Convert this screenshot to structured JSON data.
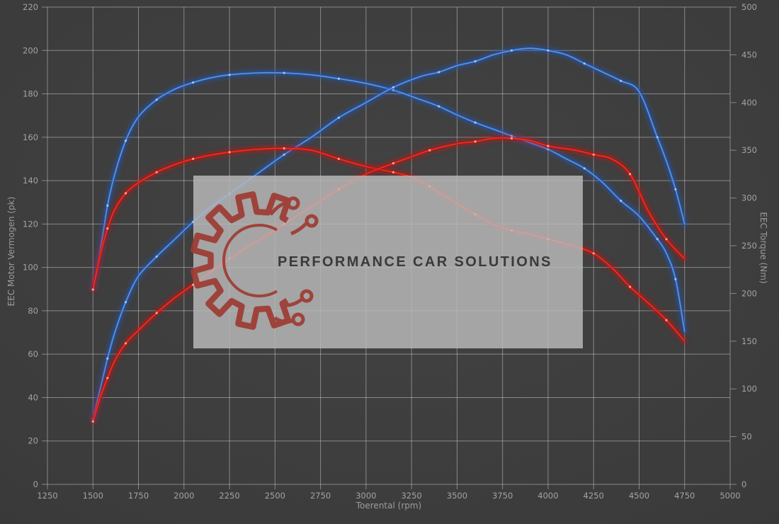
{
  "colors": {
    "background_center": "#434343",
    "background_edge": "#2a2a2a",
    "gridline": "rgba(210,210,210,0.50)",
    "tick_label": "#a3a3a3",
    "axis_title": "#9c9c9c"
  },
  "chart_data": {
    "type": "line",
    "title": "",
    "xlabel": "Toerental (rpm)",
    "ylabel_left": "EEC Motor Vermogen (pk)",
    "ylabel_right": "EEC Torque (Nm)",
    "x_range": [
      1250,
      5000
    ],
    "x_tick_step": 250,
    "x_tick_labels": [
      "1250",
      "1500",
      "1750",
      "2000",
      "2250",
      "2500",
      "2750",
      "3000",
      "3250",
      "3500",
      "3750",
      "4000",
      "4250",
      "4500",
      "4750",
      "5000"
    ],
    "y_left_range": [
      0,
      220
    ],
    "y_left_tick_step": 20,
    "y_left_tick_labels": [
      "0",
      "20",
      "40",
      "60",
      "80",
      "100",
      "120",
      "140",
      "160",
      "180",
      "200",
      "220"
    ],
    "y_right_range": [
      0,
      500
    ],
    "y_right_tick_step": 50,
    "y_right_tick_labels": [
      "0",
      "50",
      "100",
      "150",
      "200",
      "250",
      "300",
      "350",
      "400",
      "450",
      "500"
    ],
    "grid": "on (follows left-axis ticks and x ticks)",
    "legend": "none",
    "series": [
      {
        "id": "torque-tuned-blue",
        "axis": "right",
        "unit": "Nm",
        "glow": "#2257b8",
        "core": "#5causes",
        "comment_core_fix": "see core key below",
        "core_color": "#5b96dd",
        "dot_color": "#aacef2",
        "peak": {
          "rpm": 2500,
          "value": 431
        },
        "data": [
          [
            1500,
            205
          ],
          [
            1540,
            245
          ],
          [
            1580,
            292
          ],
          [
            1620,
            325
          ],
          [
            1680,
            360
          ],
          [
            1750,
            385
          ],
          [
            1850,
            403
          ],
          [
            1950,
            414
          ],
          [
            2050,
            421
          ],
          [
            2150,
            426
          ],
          [
            2250,
            429
          ],
          [
            2400,
            431
          ],
          [
            2550,
            431
          ],
          [
            2700,
            429
          ],
          [
            2850,
            425
          ],
          [
            3000,
            420
          ],
          [
            3150,
            413
          ],
          [
            3300,
            403
          ],
          [
            3400,
            396
          ],
          [
            3500,
            387
          ],
          [
            3600,
            379
          ],
          [
            3700,
            372
          ],
          [
            3800,
            365
          ],
          [
            3900,
            358
          ],
          [
            4000,
            351
          ],
          [
            4100,
            341
          ],
          [
            4200,
            331
          ],
          [
            4300,
            316
          ],
          [
            4400,
            297
          ],
          [
            4500,
            281
          ],
          [
            4600,
            257
          ],
          [
            4650,
            242
          ],
          [
            4700,
            215
          ],
          [
            4750,
            160
          ]
        ]
      },
      {
        "id": "power-tuned-blue",
        "axis": "left",
        "unit": "pk",
        "glow": "#2257b8",
        "core_color": "#5b96dd",
        "dot_color": "#aacef2",
        "peak": {
          "rpm": 3900,
          "value": 201
        },
        "data": [
          [
            1500,
            30
          ],
          [
            1540,
            44
          ],
          [
            1580,
            58
          ],
          [
            1620,
            70
          ],
          [
            1680,
            84
          ],
          [
            1750,
            96
          ],
          [
            1850,
            105
          ],
          [
            1950,
            113
          ],
          [
            2050,
            121
          ],
          [
            2150,
            128
          ],
          [
            2250,
            134
          ],
          [
            2400,
            143
          ],
          [
            2550,
            152
          ],
          [
            2700,
            160
          ],
          [
            2850,
            169
          ],
          [
            3000,
            176
          ],
          [
            3150,
            183
          ],
          [
            3300,
            188
          ],
          [
            3400,
            190
          ],
          [
            3500,
            193
          ],
          [
            3600,
            195
          ],
          [
            3700,
            198
          ],
          [
            3800,
            200
          ],
          [
            3900,
            201
          ],
          [
            4000,
            200
          ],
          [
            4100,
            198
          ],
          [
            4200,
            194
          ],
          [
            4300,
            190
          ],
          [
            4400,
            186
          ],
          [
            4500,
            181
          ],
          [
            4600,
            160
          ],
          [
            4650,
            149
          ],
          [
            4700,
            136
          ],
          [
            4750,
            120
          ]
        ]
      },
      {
        "id": "torque-original-red",
        "axis": "right",
        "unit": "Nm",
        "glow": "#c01212",
        "core_color": "#e83222",
        "dot_color": "#ffb0a0",
        "peak": {
          "rpm": 2550,
          "value": 352
        },
        "data": [
          [
            1500,
            204
          ],
          [
            1540,
            240
          ],
          [
            1580,
            268
          ],
          [
            1620,
            288
          ],
          [
            1680,
            305
          ],
          [
            1750,
            316
          ],
          [
            1850,
            327
          ],
          [
            1950,
            335
          ],
          [
            2050,
            341
          ],
          [
            2150,
            345
          ],
          [
            2250,
            348
          ],
          [
            2400,
            351
          ],
          [
            2550,
            352
          ],
          [
            2700,
            350
          ],
          [
            2850,
            341
          ],
          [
            3000,
            333
          ],
          [
            3150,
            327
          ],
          [
            3250,
            322
          ],
          [
            3350,
            312
          ],
          [
            3500,
            294
          ],
          [
            3600,
            283
          ],
          [
            3700,
            272
          ],
          [
            3800,
            266
          ],
          [
            3900,
            262
          ],
          [
            4000,
            257
          ],
          [
            4150,
            249
          ],
          [
            4250,
            242
          ],
          [
            4350,
            227
          ],
          [
            4450,
            207
          ],
          [
            4550,
            190
          ],
          [
            4650,
            172
          ],
          [
            4750,
            150
          ]
        ]
      },
      {
        "id": "power-original-red",
        "axis": "left",
        "unit": "pk",
        "glow": "#c01212",
        "core_color": "#e83222",
        "dot_color": "#ffb0a0",
        "peak": {
          "rpm": 3750,
          "value": 160
        },
        "data": [
          [
            1500,
            29
          ],
          [
            1540,
            40
          ],
          [
            1580,
            49
          ],
          [
            1620,
            57
          ],
          [
            1680,
            65
          ],
          [
            1750,
            71
          ],
          [
            1850,
            79
          ],
          [
            1950,
            86
          ],
          [
            2050,
            92
          ],
          [
            2150,
            98
          ],
          [
            2250,
            104
          ],
          [
            2400,
            112
          ],
          [
            2550,
            120
          ],
          [
            2700,
            128
          ],
          [
            2850,
            136
          ],
          [
            3000,
            143
          ],
          [
            3150,
            148
          ],
          [
            3250,
            151
          ],
          [
            3350,
            154
          ],
          [
            3500,
            157
          ],
          [
            3600,
            158
          ],
          [
            3700,
            159.5
          ],
          [
            3800,
            159.5
          ],
          [
            3900,
            158.5
          ],
          [
            4000,
            156
          ],
          [
            4150,
            154
          ],
          [
            4250,
            152
          ],
          [
            4350,
            150
          ],
          [
            4450,
            143
          ],
          [
            4550,
            126
          ],
          [
            4650,
            113
          ],
          [
            4750,
            104
          ]
        ]
      }
    ],
    "watermark": {
      "text": "PERFORMANCE CAR SOLUTIONS",
      "box_color": "#b9b9b9",
      "box_opacity": 0.84,
      "logo_color": "#9e3b33",
      "text_color": "#3a3a3a"
    }
  }
}
